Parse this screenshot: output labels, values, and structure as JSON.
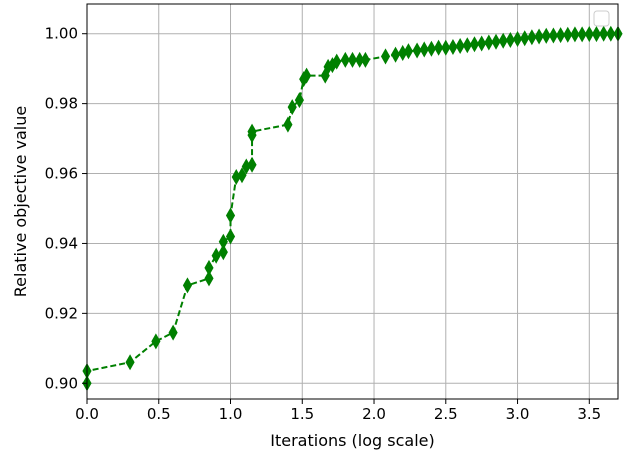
{
  "chart_data": {
    "type": "line",
    "title": "",
    "xlabel": "Iterations (log scale)",
    "ylabel": "Relative objective value",
    "xlim": [
      0.0,
      3.7
    ],
    "ylim": [
      0.8955,
      1.0085
    ],
    "x_scale": "linear (log10 of iteration count)",
    "grid": true,
    "legend": "top-right, empty",
    "x_ticks": [
      0.0,
      0.5,
      1.0,
      1.5,
      2.0,
      2.5,
      3.0,
      3.5
    ],
    "x_tick_labels": [
      "0.0",
      "0.5",
      "1.0",
      "1.5",
      "2.0",
      "2.5",
      "3.0",
      "3.5"
    ],
    "y_ticks": [
      0.9,
      0.92,
      0.94,
      0.96,
      0.98,
      1.0
    ],
    "y_tick_labels": [
      "0.90",
      "0.92",
      "0.94",
      "0.96",
      "0.98",
      "1.00"
    ],
    "line_style": "dashed",
    "marker": "thin_diamond",
    "color": "#008000",
    "series": [
      {
        "x": [
          0.0,
          0.0,
          0.3,
          0.48,
          0.6,
          0.7,
          0.85,
          0.85,
          0.9,
          0.95,
          0.95,
          1.0,
          1.0,
          1.04,
          1.08,
          1.11,
          1.15,
          1.15,
          1.15,
          1.4,
          1.43,
          1.48,
          1.51,
          1.53,
          1.66,
          1.68,
          1.71,
          1.74,
          1.8,
          1.85,
          1.9,
          1.94,
          2.08,
          2.15,
          2.2,
          2.24,
          2.3,
          2.35,
          2.4,
          2.45,
          2.5,
          2.55,
          2.6,
          2.65,
          2.7,
          2.75,
          2.8,
          2.85,
          2.9,
          2.95,
          3.0,
          3.05,
          3.1,
          3.15,
          3.2,
          3.25,
          3.3,
          3.35,
          3.4,
          3.45,
          3.5,
          3.55,
          3.6,
          3.65,
          3.7
        ],
        "y": [
          0.9,
          0.9035,
          0.906,
          0.912,
          0.9145,
          0.928,
          0.93,
          0.933,
          0.9365,
          0.9375,
          0.9405,
          0.942,
          0.948,
          0.959,
          0.9595,
          0.962,
          0.9625,
          0.971,
          0.972,
          0.974,
          0.979,
          0.981,
          0.987,
          0.988,
          0.988,
          0.9905,
          0.991,
          0.992,
          0.9925,
          0.9925,
          0.9925,
          0.9925,
          0.9935,
          0.994,
          0.9945,
          0.995,
          0.9952,
          0.9955,
          0.9957,
          0.996,
          0.996,
          0.9962,
          0.9965,
          0.9967,
          0.997,
          0.9972,
          0.9975,
          0.9977,
          0.998,
          0.9982,
          0.9985,
          0.9987,
          0.999,
          0.9992,
          0.9994,
          0.9995,
          0.9996,
          0.9997,
          0.9998,
          0.9998,
          0.9999,
          0.9999,
          1.0,
          1.0,
          1.0
        ]
      }
    ]
  }
}
